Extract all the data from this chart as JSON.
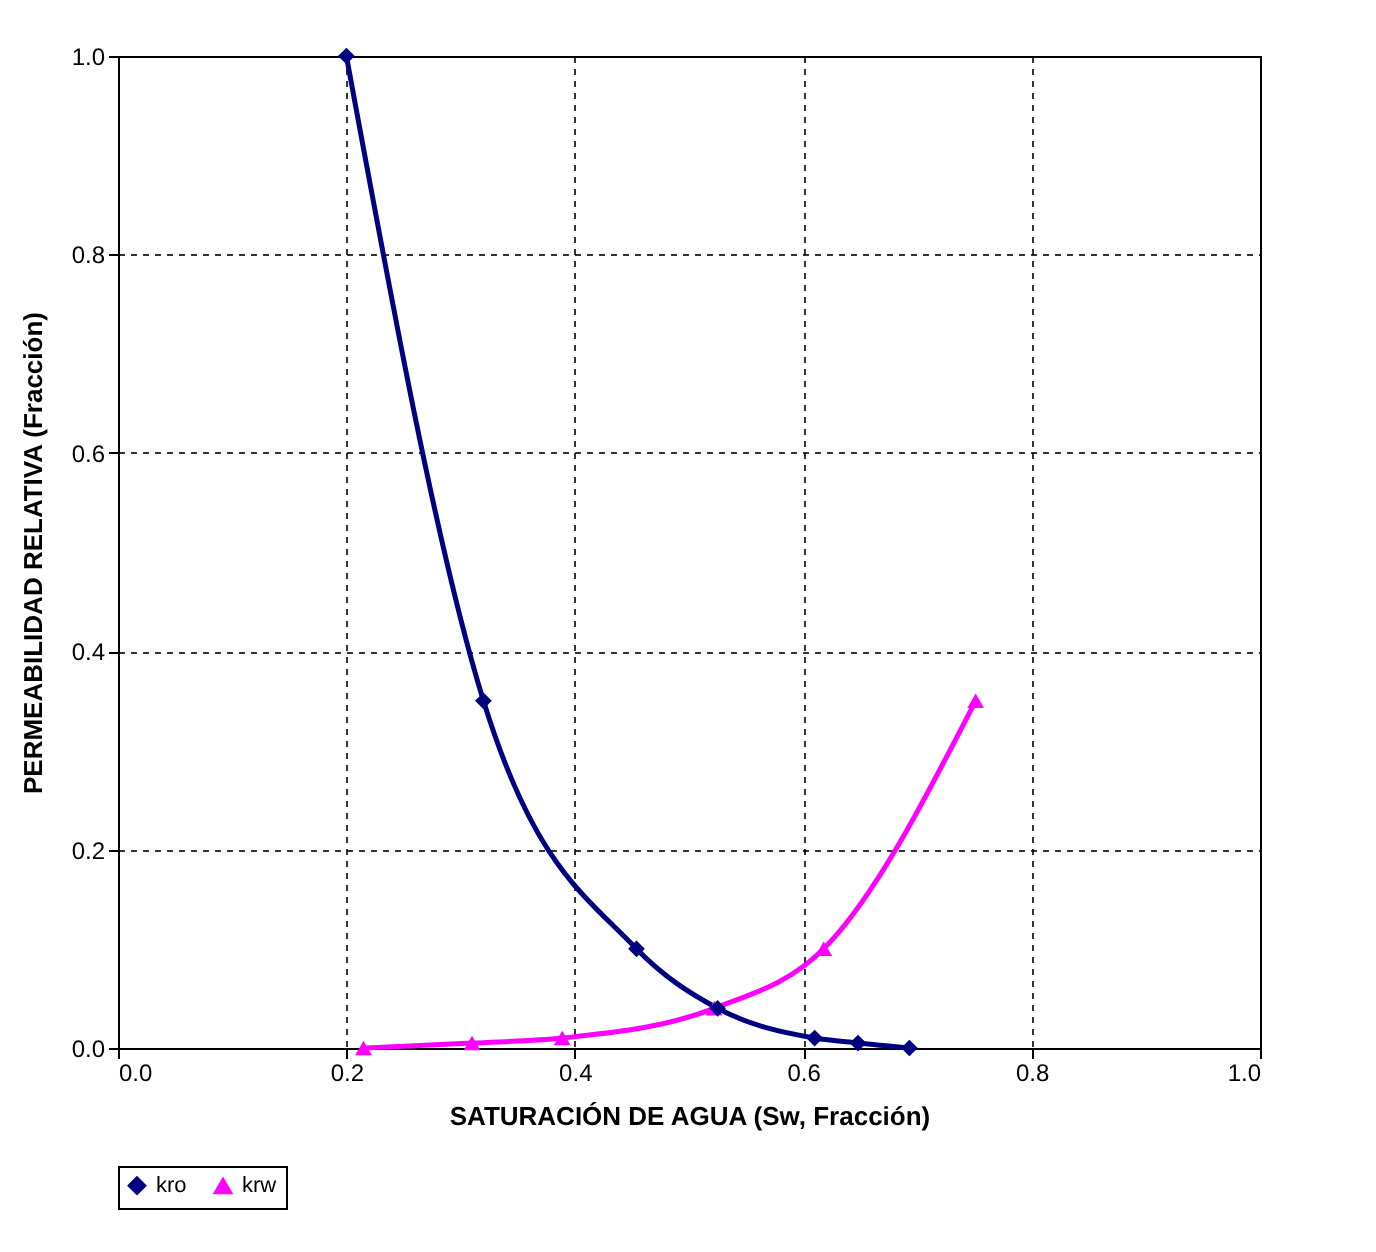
{
  "chart_data": {
    "type": "line",
    "xlabel": "SATURACIÓN DE AGUA (Sw, Fracción)",
    "ylabel": "PERMEABILIDAD RELATIVA (Fracción)",
    "xlim": [
      0,
      1
    ],
    "xticks": [
      {
        "value": 0,
        "label": "0.0"
      },
      {
        "value": 0.2,
        "label": "0.2"
      },
      {
        "value": 0.4,
        "label": "0.4"
      },
      {
        "value": 0.6,
        "label": "0.6"
      },
      {
        "value": 0.8,
        "label": "0.8"
      },
      {
        "value": 1,
        "label": "1.0"
      }
    ],
    "ylim": [
      0,
      1
    ],
    "yticks": [
      {
        "value": 0,
        "label": "0.0"
      },
      {
        "value": 0.2,
        "label": "0.2"
      },
      {
        "value": 0.4,
        "label": "0.4"
      },
      {
        "value": 0.6,
        "label": "0.6"
      },
      {
        "value": 0.8,
        "label": "0.8"
      },
      {
        "value": 1,
        "label": "1.0"
      }
    ],
    "grid": true,
    "legend": "bottom",
    "series": [
      {
        "name": "kro",
        "color": "#000080",
        "marker": "diamond",
        "x": [
          0.2,
          0.32,
          0.454,
          0.525,
          0.61,
          0.648,
          0.693
        ],
        "values": [
          1.0,
          0.35,
          0.1,
          0.04,
          0.01,
          0.005,
          0
        ]
      },
      {
        "name": "krw",
        "color": "#ff00ff",
        "marker": "triangle",
        "x": [
          0.215,
          0.31,
          0.389,
          0.522,
          0.618,
          0.751
        ],
        "values": [
          0,
          0.005,
          0.01,
          0.04,
          0.1,
          0.35
        ]
      }
    ]
  }
}
